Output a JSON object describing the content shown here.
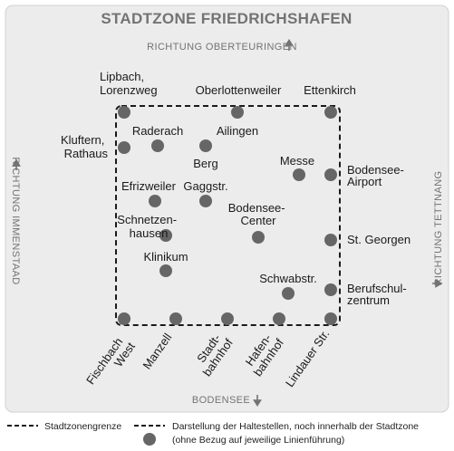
{
  "title": "STADTZONE FRIEDRICHSHAFEN",
  "directions": {
    "north": "RICHTUNG OBERTEURINGEN",
    "west": "RICHTUNG IMMENSTAAD",
    "east": "RICHTUNG TETTNANG",
    "south": "BODENSEE"
  },
  "stops": {
    "lipbach": [
      "Lipbach,",
      "Lorenzweg"
    ],
    "oberlottenweiler": "Oberlottenweiler",
    "ettenkirch": "Ettenkirch",
    "kluftern": [
      "Kluftern,",
      "Rathaus"
    ],
    "raderach": "Raderach",
    "ailingen": "Ailingen",
    "berg": "Berg",
    "messe": "Messe",
    "airport": [
      "Bodensee-",
      "Airport"
    ],
    "efrizweiler": "Efrizweiler",
    "gaggstr": "Gaggstr.",
    "bodensee_center": [
      "Bodensee-",
      "Center"
    ],
    "schnetzenhausen": [
      "Schnetzen-",
      "hausen"
    ],
    "st_georgen": "St. Georgen",
    "klinikum": "Klinikum",
    "schwabstr": "Schwabstr.",
    "berufschulzentrum": [
      "Berufschul-",
      "zentrum"
    ],
    "fischbach": [
      "Fischbach",
      "West"
    ],
    "manzell": "Manzell",
    "stadtbahnhof": [
      "Stadt-",
      "bahnhof"
    ],
    "hafenbahnhof": [
      "Hafen-",
      "bahnhof"
    ],
    "lindauer": "Lindauer Str."
  },
  "legend": {
    "zone_border": "Stadtzonengrenze",
    "stops_line1": "Darstellung der Haltestellen, noch innerhalb der Stadtzone",
    "stops_line2": "(ohne Bezug auf jeweilige Linienführung)"
  },
  "colors": {
    "panel": "#ececec",
    "panel_border": "#d0d0d0",
    "stop_dot": "#666666",
    "title": "#737373"
  }
}
